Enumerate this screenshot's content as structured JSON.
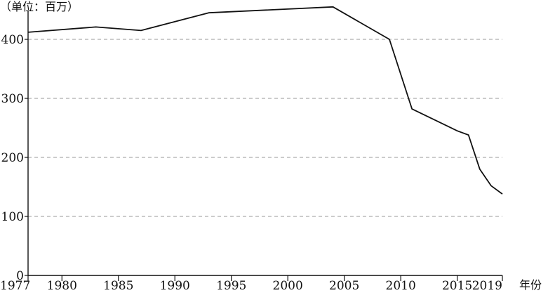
{
  "chart_data": {
    "type": "line",
    "title": "",
    "ylabel": "（单位：百万）",
    "xlabel": "年份",
    "xlim": [
      1977,
      2019
    ],
    "ylim": [
      0,
      450
    ],
    "y_ticks": [
      0,
      100,
      200,
      300,
      400
    ],
    "x_ticks": [
      1977,
      1980,
      1985,
      1990,
      1995,
      2000,
      2005,
      2010,
      2015,
      2019
    ],
    "grid": "horizontal dashed",
    "series": [
      {
        "color": "#111111",
        "x": [
          1977,
          1983,
          1987,
          1993,
          2004,
          2009,
          2011,
          2015,
          2016,
          2017,
          2018,
          2019
        ],
        "y": [
          412,
          421,
          415,
          445,
          455,
          400,
          282,
          245,
          238,
          180,
          152,
          138
        ]
      }
    ]
  }
}
